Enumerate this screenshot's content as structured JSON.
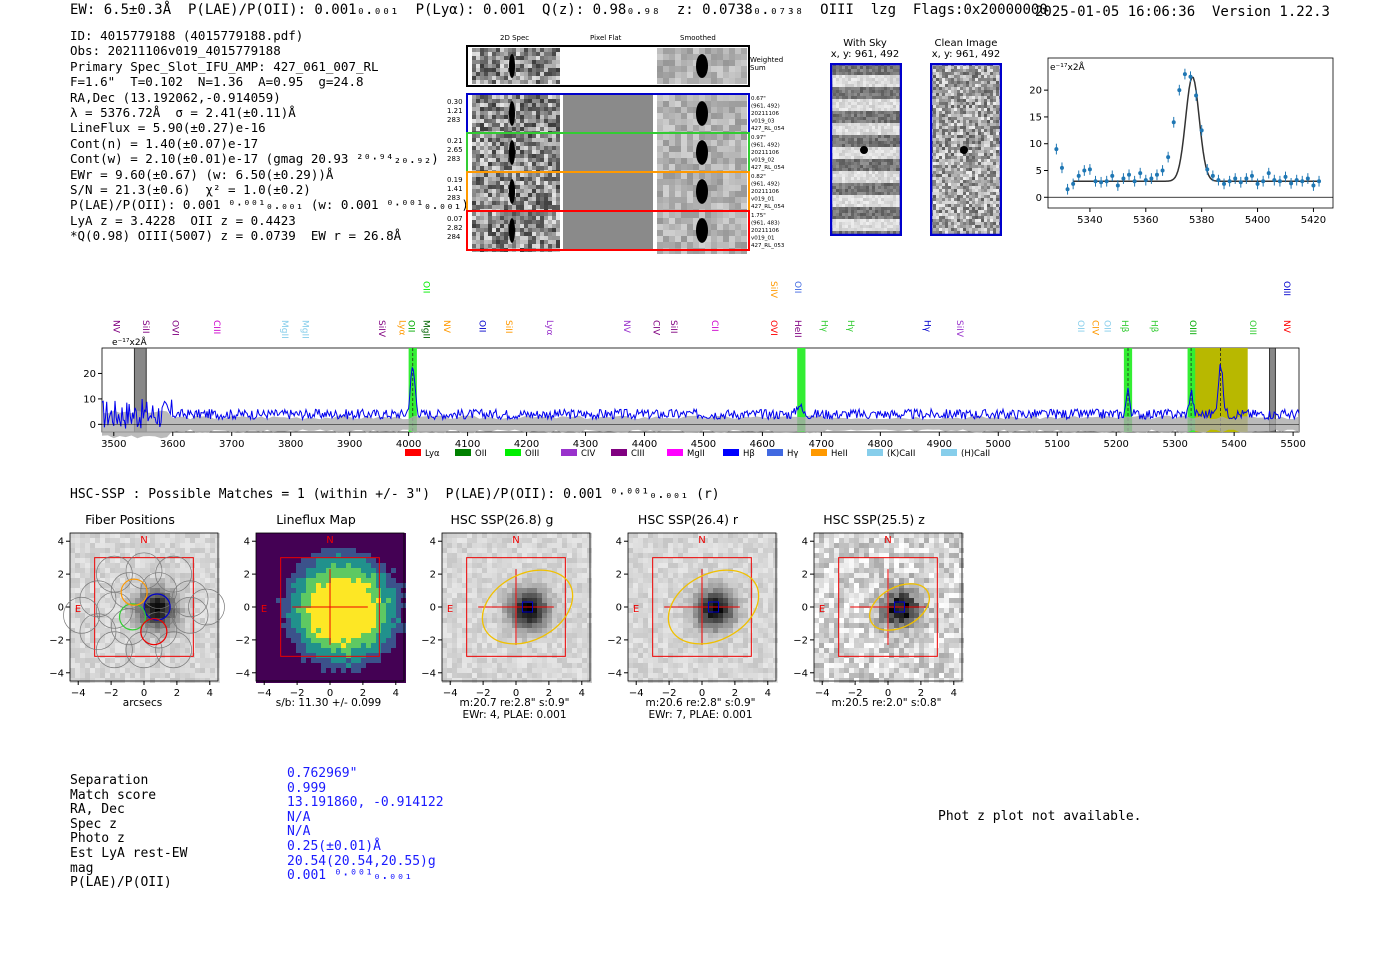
{
  "header": {
    "left": "EW: 6.5±0.3Å  P(LAE)/P(OII): 0.001₀.₀₀₁  P(Lyα): 0.001  Q(z): 0.98₀.₉₈  z: 0.0738₀.₀₇₃₈  OIII  lzg  Flags:0x20000000",
    "right": "2025-01-05 16:06:36  Version 1.22.3"
  },
  "info_lines": [
    "ID: 4015779188 (4015779188.pdf)",
    "Obs: 20211106v019_4015779188",
    "Primary Spec_Slot_IFU_AMP: 427_061_007_RL",
    "F=1.6\"  T=0.102  N=1.36  A=0.95  g=24.8",
    "RA,Dec (13.192062,-0.914059)",
    "λ = 5376.72Å  σ = 2.41(±0.11)Å",
    "LineFlux = 5.90(±0.27)e-16",
    "Cont(n) = 1.40(±0.07)e-17",
    "Cont(w) = 2.10(±0.01)e-17 (gmag 20.93 ²⁰·⁹⁴₂₀.₉₂)",
    "EWr = 9.60(±0.67) (w: 6.50(±0.29))Å",
    "S/N = 21.3(±0.6)  χ² = 1.0(±0.2)",
    "P(LAE)/P(OII): 0.001 ⁰·⁰⁰¹₀.₀₀₁ (w: 0.001 ⁰·⁰⁰¹₀.₀₀₁)",
    "LyA z = 3.4228  OII z = 0.4423",
    "*Q(0.98) OIII(5007) z = 0.0739  EW r = 26.8Å"
  ],
  "cutouts": {
    "col_titles": [
      "2D Spec",
      "Pixel Flat",
      "Smoothed"
    ],
    "weighted_label": "Weighted\nSum",
    "rows": [
      {
        "left": [
          "0.30",
          "1.21",
          "283"
        ],
        "right": [
          "0.67\"",
          "(961, 492)",
          "20211106",
          "v019_03",
          "427_RL_054"
        ],
        "color": "#0000cc"
      },
      {
        "left": [
          "0.21",
          "2.65",
          "283"
        ],
        "right": [
          "0.97\"",
          "(961, 492)",
          "20211106",
          "v019_02",
          "427_RL_054"
        ],
        "color": "#33cc33"
      },
      {
        "left": [
          "0.19",
          "1.41",
          "283"
        ],
        "right": [
          "0.82\"",
          "(961, 492)",
          "20211106",
          "v019_01",
          "427_RL_054"
        ],
        "color": "#ff9900"
      },
      {
        "left": [
          "0.07",
          "2.82",
          "284"
        ],
        "right": [
          "1.75\"",
          "(961, 483)",
          "20211106",
          "v019_01",
          "427_RL_053"
        ],
        "color": "#ff0000"
      }
    ]
  },
  "sky": {
    "with_sky_title": "With Sky",
    "with_sky_coords": "x, y: 961, 492",
    "clean_title": "Clean Image",
    "clean_coords": "x, y: 961, 492"
  },
  "zoom_chart": {
    "type": "scatter",
    "units": "e⁻¹⁷x2Å",
    "xlim": [
      5325,
      5427
    ],
    "ylim": [
      -2,
      26
    ],
    "xticks": [
      5340,
      5360,
      5380,
      5400,
      5420
    ],
    "yticks": [
      0,
      5,
      10,
      15,
      20
    ],
    "points": [
      [
        5328,
        9
      ],
      [
        5330,
        5.5
      ],
      [
        5332,
        1.5
      ],
      [
        5334,
        2.5
      ],
      [
        5336,
        4
      ],
      [
        5338,
        5
      ],
      [
        5340,
        5.2
      ],
      [
        5342,
        3
      ],
      [
        5344,
        2.8
      ],
      [
        5346,
        3
      ],
      [
        5348,
        4
      ],
      [
        5350,
        2.2
      ],
      [
        5352,
        3.5
      ],
      [
        5354,
        4.2
      ],
      [
        5356,
        3
      ],
      [
        5358,
        4.5
      ],
      [
        5360,
        3.2
      ],
      [
        5362,
        3.5
      ],
      [
        5364,
        4.2
      ],
      [
        5366,
        5
      ],
      [
        5368,
        7.5
      ],
      [
        5370,
        14
      ],
      [
        5372,
        20
      ],
      [
        5374,
        23
      ],
      [
        5376,
        22.5
      ],
      [
        5378,
        19
      ],
      [
        5380,
        12.5
      ],
      [
        5382,
        5.2
      ],
      [
        5384,
        4
      ],
      [
        5386,
        3.2
      ],
      [
        5388,
        2.5
      ],
      [
        5390,
        3
      ],
      [
        5392,
        3.5
      ],
      [
        5394,
        2.8
      ],
      [
        5396,
        3.5
      ],
      [
        5398,
        4
      ],
      [
        5400,
        2.5
      ],
      [
        5402,
        3
      ],
      [
        5404,
        4.5
      ],
      [
        5406,
        3.2
      ],
      [
        5408,
        3
      ],
      [
        5410,
        3.8
      ],
      [
        5412,
        2.6
      ],
      [
        5414,
        3.2
      ],
      [
        5416,
        3
      ],
      [
        5418,
        3.5
      ],
      [
        5420,
        2.2
      ],
      [
        5422,
        3
      ]
    ]
  },
  "spectrum": {
    "type": "line",
    "units": "e⁻¹⁷x2Å",
    "xlim": [
      3480,
      5510
    ],
    "ylim": [
      -3,
      30
    ],
    "xticks": [
      3500,
      3600,
      3700,
      3800,
      3900,
      4000,
      4100,
      4200,
      4300,
      4400,
      4500,
      4600,
      4700,
      4800,
      4900,
      5000,
      5100,
      5200,
      5300,
      5400,
      5500
    ],
    "yticks": [
      0,
      10,
      20
    ],
    "green_bands": [
      [
        4000,
        4014
      ],
      [
        4659,
        4673
      ],
      [
        5213,
        5227
      ],
      [
        5321,
        5334
      ]
    ],
    "olive_band": [
      5330,
      5423
    ],
    "grey_bands": [
      [
        3535,
        3555
      ],
      [
        5460,
        5470
      ]
    ],
    "line_labels": [
      {
        "w": 3505,
        "t": "NV",
        "c": "#800080",
        "row": 1
      },
      {
        "w": 3555,
        "t": "SiII",
        "c": "#800080",
        "row": 1
      },
      {
        "w": 3605,
        "t": "OVI",
        "c": "#800080",
        "row": 1
      },
      {
        "w": 3675,
        "t": "CIII",
        "c": "#cc00cc",
        "row": 1
      },
      {
        "w": 3790,
        "t": "MgII",
        "c": "#87ceeb",
        "row": 1
      },
      {
        "w": 3825,
        "t": "MgII",
        "c": "#87ceeb",
        "row": 1
      },
      {
        "w": 3955,
        "t": "SiIV",
        "c": "#800080",
        "row": 1
      },
      {
        "w": 3990,
        "t": "Lyα",
        "c": "#ff9900",
        "row": 1
      },
      {
        "w": 4005,
        "t": "OII",
        "c": "#00aa00",
        "row": 1
      },
      {
        "w": 4030,
        "t": "MgII",
        "c": "#006400",
        "row": 1
      },
      {
        "w": 4030,
        "t": "OII",
        "c": "#00ee00",
        "row": 0
      },
      {
        "w": 4065,
        "t": "NV",
        "c": "#ff9900",
        "row": 1
      },
      {
        "w": 4125,
        "t": "OII",
        "c": "#0000cc",
        "row": 1
      },
      {
        "w": 4170,
        "t": "SiII",
        "c": "#ff9900",
        "row": 1
      },
      {
        "w": 4240,
        "t": "Lyα",
        "c": "#9932cc",
        "row": 1
      },
      {
        "w": 4370,
        "t": "NV",
        "c": "#9932cc",
        "row": 1
      },
      {
        "w": 4420,
        "t": "CIV",
        "c": "#800080",
        "row": 1
      },
      {
        "w": 4450,
        "t": "SiII",
        "c": "#800080",
        "row": 1
      },
      {
        "w": 4520,
        "t": "CII",
        "c": "#cc00cc",
        "row": 1
      },
      {
        "w": 4620,
        "t": "OVI",
        "c": "#ff0000",
        "row": 1
      },
      {
        "w": 4620,
        "t": "SiIV",
        "c": "#ff9900",
        "row": 0
      },
      {
        "w": 4660,
        "t": "HeII",
        "c": "#800080",
        "row": 1
      },
      {
        "w": 4660,
        "t": "OII",
        "c": "#4169e1",
        "row": 0
      },
      {
        "w": 4705,
        "t": "Hγ",
        "c": "#33cc33",
        "row": 1
      },
      {
        "w": 4750,
        "t": "Hγ",
        "c": "#33cc33",
        "row": 1
      },
      {
        "w": 4880,
        "t": "Hγ",
        "c": "#0000cc",
        "row": 1
      },
      {
        "w": 4935,
        "t": "SiIV",
        "c": "#9932cc",
        "row": 1
      },
      {
        "w": 5140,
        "t": "OII",
        "c": "#87ceeb",
        "row": 1
      },
      {
        "w": 5165,
        "t": "CIV",
        "c": "#ff9900",
        "row": 1
      },
      {
        "w": 5185,
        "t": "OII",
        "c": "#87ceeb",
        "row": 1
      },
      {
        "w": 5215,
        "t": "Hβ",
        "c": "#33cc33",
        "row": 1
      },
      {
        "w": 5265,
        "t": "Hβ",
        "c": "#33cc33",
        "row": 1
      },
      {
        "w": 5330,
        "t": "OIII",
        "c": "#00aa00",
        "row": 1
      },
      {
        "w": 5432,
        "t": "OIII",
        "c": "#33cc33",
        "row": 1
      },
      {
        "w": 5490,
        "t": "NV",
        "c": "#ff0000",
        "row": 1
      },
      {
        "w": 5490,
        "t": "OIII",
        "c": "#0000cc",
        "row": 0
      }
    ],
    "legend": [
      {
        "t": "Lyα",
        "c": "#ff0000"
      },
      {
        "t": "OII",
        "c": "#008000"
      },
      {
        "t": "OIII",
        "c": "#00ee00"
      },
      {
        "t": "CIV",
        "c": "#9932cc"
      },
      {
        "t": "CIII",
        "c": "#800080"
      },
      {
        "t": "MgII",
        "c": "#ff00ff"
      },
      {
        "t": "Hβ",
        "c": "#0000ff"
      },
      {
        "t": "Hγ",
        "c": "#4169e1"
      },
      {
        "t": "HeII",
        "c": "#ff9900"
      },
      {
        "t": "(K)CaII",
        "c": "#87ceeb"
      },
      {
        "t": "(H)CaII",
        "c": "#87ceeb"
      }
    ]
  },
  "hsc_title": "HSC-SSP : Possible Matches = 1 (within +/- 3\")  P(LAE)/P(OII): 0.001 ⁰·⁰⁰¹₀.₀₀₁ (r)",
  "images": [
    {
      "title": "Fiber Positions",
      "sub1": "arcsecs",
      "sub2": ""
    },
    {
      "title": "Lineflux Map",
      "sub1": "s/b: 11.30 +/- 0.099",
      "sub2": ""
    },
    {
      "title": "HSC SSP(26.8) g",
      "sub1": "m:20.7  re:2.8\"  s:0.9\"",
      "sub2": "EWr: 4, PLAE: 0.001"
    },
    {
      "title": "HSC SSP(26.4) r",
      "sub1": "m:20.6  re:2.8\"  s:0.9\"",
      "sub2": "EWr: 7, PLAE: 0.001"
    },
    {
      "title": "HSC SSP(25.5) z",
      "sub1": "m:20.5  re:2.0\"  s:0.8\"",
      "sub2": ""
    }
  ],
  "image_axis": {
    "ticks": [
      -4,
      -2,
      0,
      2,
      4
    ],
    "N": "N",
    "E": "E"
  },
  "match_table": {
    "keys": [
      "Separation",
      "Match score",
      "RA, Dec",
      "Spec z",
      "Photo z",
      "Est LyA rest-EW",
      "mag",
      "P(LAE)/P(OII)"
    ],
    "values": [
      "0.762969\"",
      "0.999",
      "13.191860, -0.914122",
      "N/A",
      "N/A",
      "0.25(±0.01)Å",
      "20.54(20.54,20.55)g",
      "0.001 ⁰·⁰⁰¹₀.₀₀₁"
    ]
  },
  "photz_note": "Phot z plot not available.",
  "colors": {
    "spectrum": "#0000ee",
    "error": "#aaaaaa",
    "green": "#33ee33",
    "olive": "#b8b800",
    "fit": "#333333",
    "points": "#1f77b4"
  }
}
